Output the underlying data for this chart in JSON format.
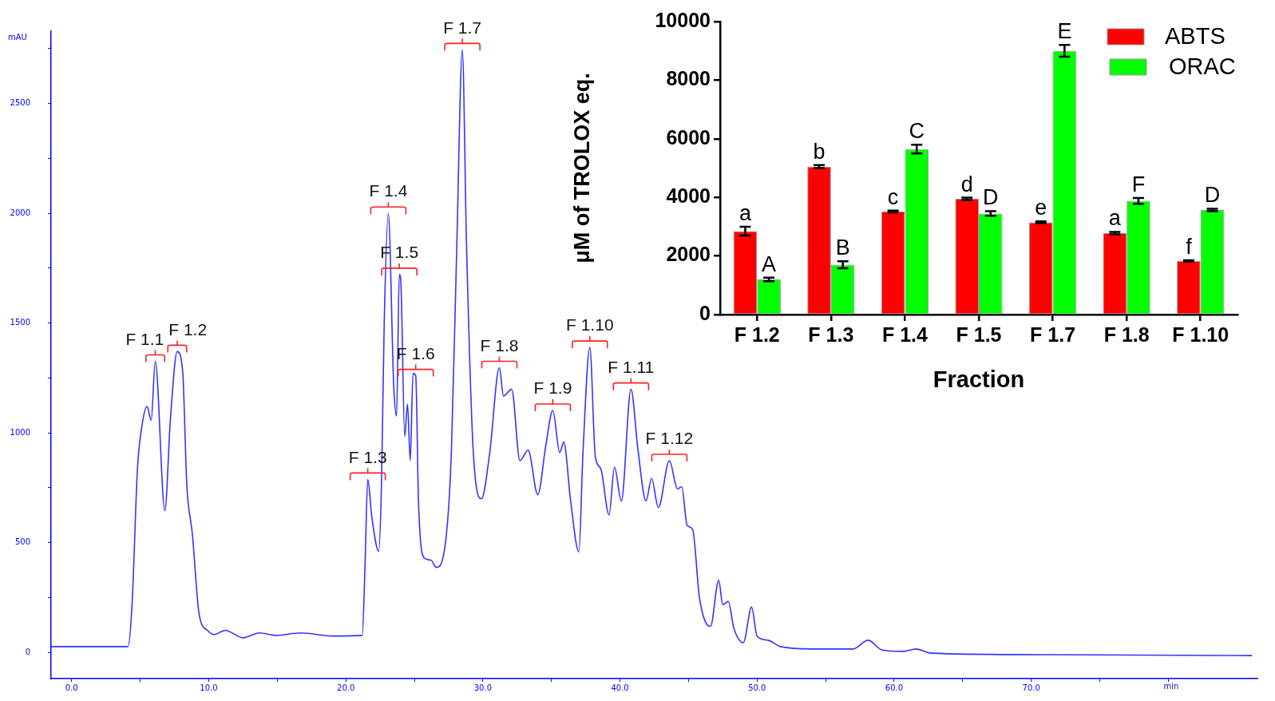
{
  "chart_data": [
    {
      "type": "line",
      "xlabel": "min",
      "ylabel": "mAU",
      "xlim": [
        -1.5,
        86.5
      ],
      "ylim": [
        -120,
        2830
      ],
      "xticks": [
        {
          "value": 0,
          "label": "0.0"
        },
        {
          "value": 5,
          "label": null
        },
        {
          "value": 10,
          "label": "10.0"
        },
        {
          "value": 15,
          "label": null
        },
        {
          "value": 20,
          "label": "20.0"
        },
        {
          "value": 25,
          "label": null
        },
        {
          "value": 30,
          "label": "30.0"
        },
        {
          "value": 35,
          "label": null
        },
        {
          "value": 40,
          "label": "40.0"
        },
        {
          "value": 45,
          "label": null
        },
        {
          "value": 50,
          "label": "50.0"
        },
        {
          "value": 55,
          "label": null
        },
        {
          "value": 60,
          "label": "60.0"
        },
        {
          "value": 65,
          "label": null
        },
        {
          "value": 70,
          "label": "70.0"
        },
        {
          "value": 75,
          "label": null
        },
        {
          "value": 80,
          "label": null
        }
      ],
      "yticks": [
        0,
        {
          "value": 250,
          "label": null
        },
        500,
        {
          "value": 750,
          "label": null
        },
        1000,
        {
          "value": 1250,
          "label": null
        },
        1500,
        {
          "value": 1750,
          "label": null
        },
        2000,
        {
          "value": 2250,
          "label": null
        },
        2500,
        {
          "value": 2750,
          "label": null
        }
      ],
      "marker": "none",
      "line_style": "solid",
      "series": [
        {
          "color": "#3333ff",
          "x": [
            -1.5,
            4.1,
            4.4,
            4.8,
            5.1,
            5.5,
            5.8,
            6.1,
            6.8,
            7.2,
            7.7,
            8.1,
            8.4,
            8.8,
            9.3,
            9.9,
            10.4,
            11.2,
            12.5,
            13.7,
            14.9,
            16.7,
            19.1,
            21.2,
            21.4,
            21.6,
            21.9,
            22.4,
            22.6,
            22.8,
            23.1,
            23.5,
            23.7,
            23.9,
            24.0,
            24.3,
            24.5,
            24.7,
            24.9,
            25.1,
            25.3,
            25.7,
            26.2,
            26.6,
            27.2,
            27.7,
            28.1,
            28.5,
            28.8,
            29.3,
            29.9,
            30.5,
            31.2,
            31.5,
            32.1,
            32.7,
            33.3,
            34.0,
            34.6,
            35.1,
            35.6,
            35.9,
            36.4,
            37.0,
            37.3,
            37.8,
            38.2,
            38.6,
            39.2,
            39.6,
            40.1,
            40.8,
            41.3,
            41.9,
            42.3,
            42.8,
            43.6,
            44.2,
            44.5,
            44.9,
            45.3,
            45.8,
            46.6,
            47.2,
            47.5,
            47.9,
            48.3,
            49.0,
            49.6,
            50.0,
            50.8,
            51.7,
            54.1,
            57.0,
            58.1,
            59.1,
            60.6,
            61.6,
            62.7,
            71.9,
            86.1
          ],
          "values": [
            26,
            26,
            210,
            836,
            1020,
            1120,
            1057,
            1326,
            645,
            1057,
            1370,
            1278,
            763,
            542,
            173,
            100,
            81,
            100,
            66,
            88,
            77,
            88,
            74,
            77,
            394,
            788,
            615,
            460,
            763,
            1500,
            2000,
            1205,
            1076,
            1721,
            1702,
            984,
            1131,
            873,
            1271,
            1260,
            689,
            431,
            420,
            387,
            468,
            910,
            1868,
            2745,
            1868,
            910,
            700,
            910,
            1297,
            1168,
            1198,
            873,
            921,
            718,
            947,
            1102,
            910,
            958,
            689,
            457,
            910,
            1389,
            892,
            836,
            626,
            844,
            689,
            1198,
            929,
            689,
            792,
            660,
            873,
            744,
            755,
            578,
            560,
            247,
            118,
            328,
            217,
            232,
            111,
            44,
            206,
            74,
            55,
            26,
            15,
            15,
            55,
            11,
            4,
            15,
            -4,
            -11,
            -15
          ]
        }
      ],
      "annotations": [
        {
          "text": "F 1.1",
          "x": 6.1,
          "y": 1326
        },
        {
          "text": "F 1.2",
          "x": 7.7,
          "y": 1370
        },
        {
          "text": "F 1.3",
          "x": 21.6,
          "y": 788
        },
        {
          "text": "F 1.4",
          "x": 23.1,
          "y": 2000
        },
        {
          "text": "F 1.5",
          "x": 23.9,
          "y": 1721
        },
        {
          "text": "F 1.6",
          "x": 25.1,
          "y": 1260
        },
        {
          "text": "F 1.7",
          "x": 28.5,
          "y": 2745
        },
        {
          "text": "F 1.8",
          "x": 31.2,
          "y": 1297
        },
        {
          "text": "F 1.9",
          "x": 35.1,
          "y": 1102
        },
        {
          "text": "F 1.10",
          "x": 37.8,
          "y": 1389
        },
        {
          "text": "F 1.11",
          "x": 40.8,
          "y": 1198
        },
        {
          "text": "F 1.12",
          "x": 43.6,
          "y": 873
        }
      ]
    },
    {
      "type": "bar",
      "xlabel": "Fraction",
      "ylabel": "μM of TROLOX eq.",
      "categories": [
        "F 1.2",
        "F 1.3",
        "F 1.4",
        "F 1.5",
        "F 1.7",
        "F 1.8",
        "F 1.10"
      ],
      "ylim": [
        0,
        10000
      ],
      "yticks": [
        0,
        2000,
        4000,
        6000,
        8000,
        10000
      ],
      "legend": "top right",
      "series": [
        {
          "name": "ABTS",
          "color": "#ff0000",
          "values": [
            2850,
            5050,
            3520,
            3950,
            3150,
            2780,
            1830
          ],
          "errors": [
            150,
            50,
            30,
            40,
            30,
            40,
            20
          ]
        },
        {
          "name": "ORAC",
          "color": "#00ff00",
          "values": [
            1200,
            1700,
            5650,
            3450,
            9000,
            3880,
            3570
          ],
          "errors": [
            60,
            120,
            150,
            80,
            200,
            100,
            40
          ]
        }
      ],
      "annotations": [
        {
          "text": "a",
          "x": "F 1.2",
          "y": 2850
        },
        {
          "text": "A",
          "x": "F 1.2",
          "y": 1200
        },
        {
          "text": "b",
          "x": "F 1.3",
          "y": 5050
        },
        {
          "text": "B",
          "x": "F 1.3",
          "y": 1700
        },
        {
          "text": "c",
          "x": "F 1.4",
          "y": 3520
        },
        {
          "text": "C",
          "x": "F 1.4",
          "y": 5650
        },
        {
          "text": "d",
          "x": "F 1.5",
          "y": 3950
        },
        {
          "text": "D",
          "x": "F 1.5",
          "y": 3450
        },
        {
          "text": "e",
          "x": "F 1.7",
          "y": 3150
        },
        {
          "text": "E",
          "x": "F 1.7",
          "y": 9000
        },
        {
          "text": "a",
          "x": "F 1.8",
          "y": 2780
        },
        {
          "text": "F",
          "x": "F 1.8",
          "y": 3880
        },
        {
          "text": "f",
          "x": "F 1.10",
          "y": 1830
        },
        {
          "text": "D",
          "x": "F 1.10",
          "y": 3570
        }
      ]
    }
  ]
}
